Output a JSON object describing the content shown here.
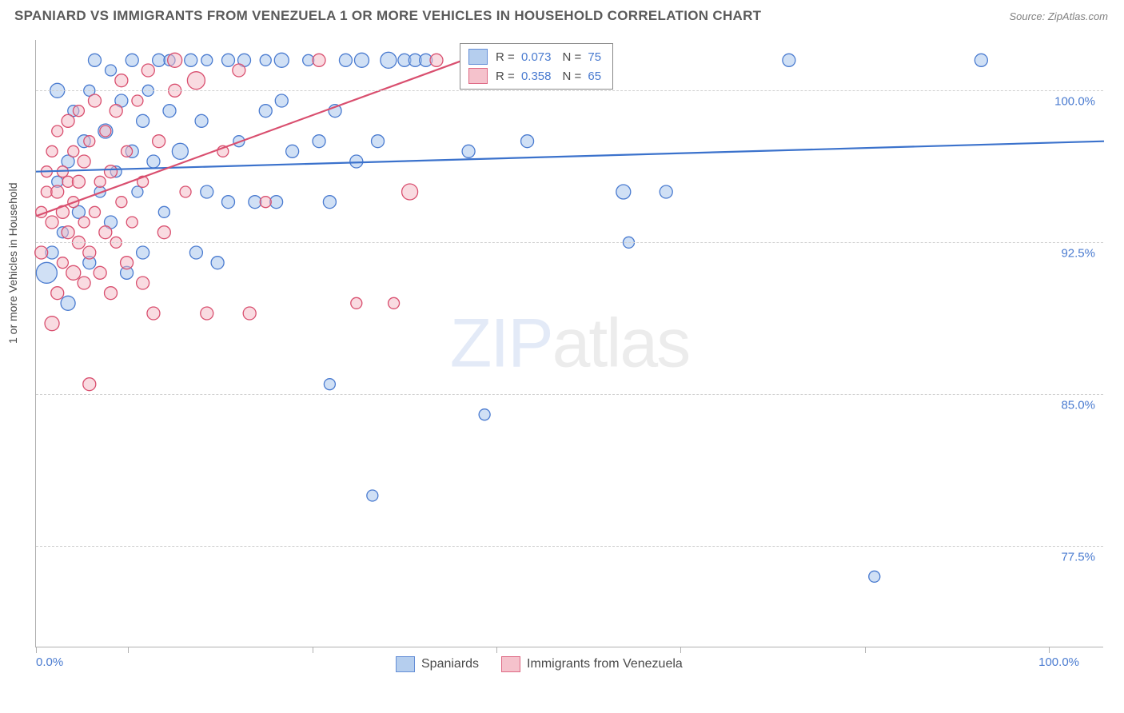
{
  "title": "SPANIARD VS IMMIGRANTS FROM VENEZUELA 1 OR MORE VEHICLES IN HOUSEHOLD CORRELATION CHART",
  "source": "Source: ZipAtlas.com",
  "yaxis_label": "1 or more Vehicles in Household",
  "watermark_a": "ZIP",
  "watermark_b": "atlas",
  "chart": {
    "type": "scatter",
    "xlim": [
      0,
      100
    ],
    "ylim": [
      72.5,
      102.5
    ],
    "xaxis_min_label": "0.0%",
    "xaxis_max_label": "100.0%",
    "xtick_positions": [
      0,
      8.6,
      25.9,
      43.1,
      60.3,
      77.6,
      94.8
    ],
    "yticks": [
      {
        "v": 77.5,
        "label": "77.5%"
      },
      {
        "v": 85.0,
        "label": "85.0%"
      },
      {
        "v": 92.5,
        "label": "92.5%"
      },
      {
        "v": 100.0,
        "label": "100.0%"
      }
    ],
    "grid_color": "#cfcfcf",
    "background_color": "#ffffff",
    "series": [
      {
        "name": "Spaniards",
        "fill": "#a9c6ec",
        "stroke": "#4a7bd0",
        "fill_opacity": 0.55,
        "line_color": "#3b72cc",
        "line_width": 2.2,
        "trend": {
          "x1": 0,
          "y1": 96.0,
          "x2": 100,
          "y2": 97.5
        },
        "R": "0.073",
        "N": "75",
        "points": [
          {
            "x": 1.0,
            "y": 91.0,
            "r": 13
          },
          {
            "x": 1.5,
            "y": 92.0,
            "r": 8
          },
          {
            "x": 2.0,
            "y": 95.5,
            "r": 7
          },
          {
            "x": 2.0,
            "y": 100.0,
            "r": 9
          },
          {
            "x": 2.5,
            "y": 93.0,
            "r": 7
          },
          {
            "x": 3.0,
            "y": 96.5,
            "r": 8
          },
          {
            "x": 3.0,
            "y": 89.5,
            "r": 9
          },
          {
            "x": 3.5,
            "y": 99.0,
            "r": 7
          },
          {
            "x": 4.0,
            "y": 94.0,
            "r": 8
          },
          {
            "x": 4.5,
            "y": 97.5,
            "r": 8
          },
          {
            "x": 5.0,
            "y": 91.5,
            "r": 8
          },
          {
            "x": 5.0,
            "y": 100.0,
            "r": 7
          },
          {
            "x": 5.5,
            "y": 101.5,
            "r": 8
          },
          {
            "x": 6.0,
            "y": 95.0,
            "r": 7
          },
          {
            "x": 6.5,
            "y": 98.0,
            "r": 9
          },
          {
            "x": 7.0,
            "y": 93.5,
            "r": 8
          },
          {
            "x": 7.0,
            "y": 101.0,
            "r": 7
          },
          {
            "x": 7.5,
            "y": 96.0,
            "r": 7
          },
          {
            "x": 8.0,
            "y": 99.5,
            "r": 8
          },
          {
            "x": 8.5,
            "y": 91.0,
            "r": 8
          },
          {
            "x": 9.0,
            "y": 97.0,
            "r": 8
          },
          {
            "x": 9.0,
            "y": 101.5,
            "r": 8
          },
          {
            "x": 9.5,
            "y": 95.0,
            "r": 7
          },
          {
            "x": 10.0,
            "y": 98.5,
            "r": 8
          },
          {
            "x": 10.0,
            "y": 92.0,
            "r": 8
          },
          {
            "x": 10.5,
            "y": 100.0,
            "r": 7
          },
          {
            "x": 11.0,
            "y": 96.5,
            "r": 8
          },
          {
            "x": 11.5,
            "y": 101.5,
            "r": 8
          },
          {
            "x": 12.0,
            "y": 94.0,
            "r": 7
          },
          {
            "x": 12.5,
            "y": 99.0,
            "r": 8
          },
          {
            "x": 12.5,
            "y": 101.5,
            "r": 7
          },
          {
            "x": 13.5,
            "y": 97.0,
            "r": 10
          },
          {
            "x": 14.5,
            "y": 101.5,
            "r": 8
          },
          {
            "x": 15.0,
            "y": 92.0,
            "r": 8
          },
          {
            "x": 15.5,
            "y": 98.5,
            "r": 8
          },
          {
            "x": 16.0,
            "y": 95.0,
            "r": 8
          },
          {
            "x": 16.0,
            "y": 101.5,
            "r": 7
          },
          {
            "x": 17.0,
            "y": 91.5,
            "r": 8
          },
          {
            "x": 18.0,
            "y": 94.5,
            "r": 8
          },
          {
            "x": 18.0,
            "y": 101.5,
            "r": 8
          },
          {
            "x": 19.0,
            "y": 97.5,
            "r": 7
          },
          {
            "x": 19.5,
            "y": 101.5,
            "r": 8
          },
          {
            "x": 20.5,
            "y": 94.5,
            "r": 8
          },
          {
            "x": 21.5,
            "y": 99.0,
            "r": 8
          },
          {
            "x": 21.5,
            "y": 101.5,
            "r": 7
          },
          {
            "x": 22.5,
            "y": 94.5,
            "r": 8
          },
          {
            "x": 23.0,
            "y": 99.5,
            "r": 8
          },
          {
            "x": 23.0,
            "y": 101.5,
            "r": 9
          },
          {
            "x": 24.0,
            "y": 97.0,
            "r": 8
          },
          {
            "x": 25.5,
            "y": 101.5,
            "r": 7
          },
          {
            "x": 26.5,
            "y": 97.5,
            "r": 8
          },
          {
            "x": 27.5,
            "y": 94.5,
            "r": 8
          },
          {
            "x": 27.5,
            "y": 85.5,
            "r": 7
          },
          {
            "x": 28.0,
            "y": 99.0,
            "r": 8
          },
          {
            "x": 29.0,
            "y": 101.5,
            "r": 8
          },
          {
            "x": 30.0,
            "y": 96.5,
            "r": 8
          },
          {
            "x": 30.5,
            "y": 101.5,
            "r": 9
          },
          {
            "x": 31.5,
            "y": 80.0,
            "r": 7
          },
          {
            "x": 32.0,
            "y": 97.5,
            "r": 8
          },
          {
            "x": 33.0,
            "y": 101.5,
            "r": 10
          },
          {
            "x": 34.5,
            "y": 101.5,
            "r": 8
          },
          {
            "x": 35.5,
            "y": 101.5,
            "r": 8
          },
          {
            "x": 36.5,
            "y": 101.5,
            "r": 8
          },
          {
            "x": 40.5,
            "y": 97.0,
            "r": 8
          },
          {
            "x": 42.0,
            "y": 84.0,
            "r": 7
          },
          {
            "x": 46.0,
            "y": 97.5,
            "r": 8
          },
          {
            "x": 47.5,
            "y": 101.5,
            "r": 9
          },
          {
            "x": 55.0,
            "y": 95.0,
            "r": 9
          },
          {
            "x": 55.5,
            "y": 92.5,
            "r": 7
          },
          {
            "x": 59.0,
            "y": 95.0,
            "r": 8
          },
          {
            "x": 70.5,
            "y": 101.5,
            "r": 8
          },
          {
            "x": 78.5,
            "y": 76.0,
            "r": 7
          },
          {
            "x": 88.5,
            "y": 101.5,
            "r": 8
          }
        ]
      },
      {
        "name": "Immigrants from Venezuela",
        "fill": "#f4b8c4",
        "stroke": "#d94f6f",
        "fill_opacity": 0.5,
        "line_color": "#d94f6f",
        "line_width": 2.2,
        "trend": {
          "x1": 0,
          "y1": 93.8,
          "x2": 40,
          "y2": 101.5
        },
        "R": "0.358",
        "N": "65",
        "points": [
          {
            "x": 0.5,
            "y": 92.0,
            "r": 8
          },
          {
            "x": 0.5,
            "y": 94.0,
            "r": 7
          },
          {
            "x": 1.0,
            "y": 95.0,
            "r": 7
          },
          {
            "x": 1.0,
            "y": 96.0,
            "r": 7
          },
          {
            "x": 1.5,
            "y": 88.5,
            "r": 9
          },
          {
            "x": 1.5,
            "y": 93.5,
            "r": 8
          },
          {
            "x": 1.5,
            "y": 97.0,
            "r": 7
          },
          {
            "x": 2.0,
            "y": 90.0,
            "r": 8
          },
          {
            "x": 2.0,
            "y": 95.0,
            "r": 8
          },
          {
            "x": 2.0,
            "y": 98.0,
            "r": 7
          },
          {
            "x": 2.5,
            "y": 91.5,
            "r": 7
          },
          {
            "x": 2.5,
            "y": 94.0,
            "r": 8
          },
          {
            "x": 2.5,
            "y": 96.0,
            "r": 7
          },
          {
            "x": 3.0,
            "y": 93.0,
            "r": 8
          },
          {
            "x": 3.0,
            "y": 95.5,
            "r": 7
          },
          {
            "x": 3.0,
            "y": 98.5,
            "r": 8
          },
          {
            "x": 3.5,
            "y": 91.0,
            "r": 9
          },
          {
            "x": 3.5,
            "y": 94.5,
            "r": 7
          },
          {
            "x": 3.5,
            "y": 97.0,
            "r": 7
          },
          {
            "x": 4.0,
            "y": 92.5,
            "r": 8
          },
          {
            "x": 4.0,
            "y": 95.5,
            "r": 8
          },
          {
            "x": 4.0,
            "y": 99.0,
            "r": 7
          },
          {
            "x": 4.5,
            "y": 90.5,
            "r": 8
          },
          {
            "x": 4.5,
            "y": 93.5,
            "r": 7
          },
          {
            "x": 4.5,
            "y": 96.5,
            "r": 8
          },
          {
            "x": 5.0,
            "y": 85.5,
            "r": 8
          },
          {
            "x": 5.0,
            "y": 92.0,
            "r": 8
          },
          {
            "x": 5.0,
            "y": 97.5,
            "r": 7
          },
          {
            "x": 5.5,
            "y": 94.0,
            "r": 7
          },
          {
            "x": 5.5,
            "y": 99.5,
            "r": 8
          },
          {
            "x": 6.0,
            "y": 91.0,
            "r": 8
          },
          {
            "x": 6.0,
            "y": 95.5,
            "r": 7
          },
          {
            "x": 6.5,
            "y": 93.0,
            "r": 8
          },
          {
            "x": 6.5,
            "y": 98.0,
            "r": 7
          },
          {
            "x": 7.0,
            "y": 90.0,
            "r": 8
          },
          {
            "x": 7.0,
            "y": 96.0,
            "r": 8
          },
          {
            "x": 7.5,
            "y": 92.5,
            "r": 7
          },
          {
            "x": 7.5,
            "y": 99.0,
            "r": 8
          },
          {
            "x": 8.0,
            "y": 94.5,
            "r": 7
          },
          {
            "x": 8.0,
            "y": 100.5,
            "r": 8
          },
          {
            "x": 8.5,
            "y": 91.5,
            "r": 8
          },
          {
            "x": 8.5,
            "y": 97.0,
            "r": 7
          },
          {
            "x": 9.0,
            "y": 93.5,
            "r": 7
          },
          {
            "x": 9.5,
            "y": 99.5,
            "r": 7
          },
          {
            "x": 10.0,
            "y": 90.5,
            "r": 8
          },
          {
            "x": 10.0,
            "y": 95.5,
            "r": 7
          },
          {
            "x": 10.5,
            "y": 101.0,
            "r": 8
          },
          {
            "x": 11.0,
            "y": 89.0,
            "r": 8
          },
          {
            "x": 11.5,
            "y": 97.5,
            "r": 8
          },
          {
            "x": 12.0,
            "y": 93.0,
            "r": 8
          },
          {
            "x": 13.0,
            "y": 100.0,
            "r": 8
          },
          {
            "x": 13.0,
            "y": 101.5,
            "r": 9
          },
          {
            "x": 14.0,
            "y": 95.0,
            "r": 7
          },
          {
            "x": 15.0,
            "y": 100.5,
            "r": 11
          },
          {
            "x": 16.0,
            "y": 89.0,
            "r": 8
          },
          {
            "x": 17.5,
            "y": 97.0,
            "r": 7
          },
          {
            "x": 19.0,
            "y": 101.0,
            "r": 8
          },
          {
            "x": 20.0,
            "y": 89.0,
            "r": 8
          },
          {
            "x": 21.5,
            "y": 94.5,
            "r": 7
          },
          {
            "x": 26.5,
            "y": 101.5,
            "r": 8
          },
          {
            "x": 30.0,
            "y": 89.5,
            "r": 7
          },
          {
            "x": 33.5,
            "y": 89.5,
            "r": 7
          },
          {
            "x": 35.0,
            "y": 95.0,
            "r": 10
          },
          {
            "x": 37.5,
            "y": 101.5,
            "r": 8
          }
        ]
      }
    ],
    "legend_labels": {
      "R_prefix": "R = ",
      "N_prefix": "N = "
    }
  }
}
